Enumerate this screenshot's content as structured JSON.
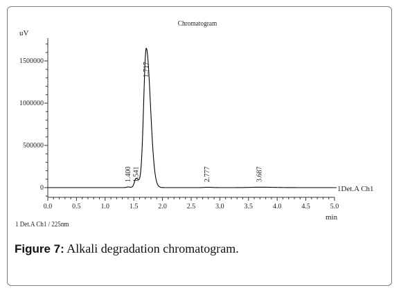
{
  "caption": {
    "label": "Figure 7:",
    "text": " Alkali degradation chromatogram."
  },
  "detector_note": "1   Det.A Ch1 / 225nm",
  "chart_data": {
    "type": "line",
    "title": "Chromatogram",
    "ylabel": "uV",
    "xlabel": "min",
    "xlim": [
      0.0,
      5.0
    ],
    "ylim": [
      -100000,
      1700000
    ],
    "xticks": [
      "0.0",
      "0.5",
      "1.0",
      "1.5",
      "2.0",
      "2.5",
      "3.0",
      "3.5",
      "4.0",
      "4.5",
      "5.0"
    ],
    "yticks": [
      {
        "value": 0,
        "label": "0"
      },
      {
        "value": 500000,
        "label": "500000"
      },
      {
        "value": 1000000,
        "label": "1000000"
      },
      {
        "value": 1500000,
        "label": "1500000"
      }
    ],
    "series_label": "1Det.A Ch1",
    "peaks": [
      {
        "rt": 1.4,
        "label": "1.400",
        "height": 8000,
        "width": 0.025
      },
      {
        "rt": 1.541,
        "label": "1.541",
        "height": 110000,
        "width": 0.03
      },
      {
        "rt": 1.717,
        "label": "1.717",
        "height": 1650000,
        "width": 0.045
      },
      {
        "rt": 2.777,
        "label": "2.777",
        "height": 4000,
        "width": 0.05
      },
      {
        "rt": 3.687,
        "label": "3.687",
        "height": 5000,
        "width": 0.15
      }
    ]
  }
}
